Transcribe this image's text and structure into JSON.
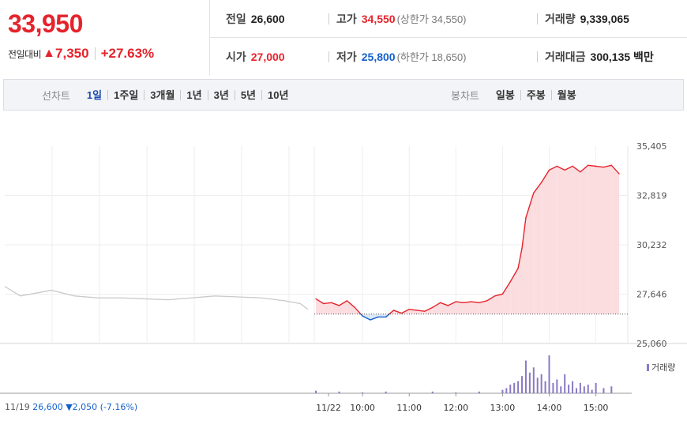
{
  "quote": {
    "price": "33,950",
    "change_label": "전일대비",
    "change_amount": "7,350",
    "change_rate": "+27.63%",
    "prev_close": {
      "label": "전일",
      "value": "26,600"
    },
    "high": {
      "label": "고가",
      "value": "34,550",
      "sub": "(상한가 34,550)"
    },
    "volume": {
      "label": "거래량",
      "value": "9,339,065"
    },
    "open": {
      "label": "시가",
      "value": "27,000"
    },
    "low": {
      "label": "저가",
      "value": "25,800",
      "sub": "(하한가 18,650)"
    },
    "amount": {
      "label": "거래대금",
      "value": "300,135 백만"
    }
  },
  "line_chart": {
    "title": "선차트",
    "periods": [
      "1일",
      "1주일",
      "3개월",
      "1년",
      "3년",
      "5년",
      "10년"
    ],
    "active": "1일"
  },
  "candle_chart": {
    "title": "봉차트",
    "periods": [
      "일봉",
      "주봉",
      "월봉"
    ]
  },
  "colors": {
    "up": "#e5232b",
    "down": "#1461cc",
    "prev_day": "#c9c9c9",
    "volume": "#8a79c4"
  },
  "footer": {
    "prev_date": "11/19",
    "prev_price": "26,600",
    "prev_change": "▼2,050 (-7.16%)"
  },
  "chart_data": {
    "type": "line",
    "y_ticks": [
      "35,405",
      "32,819",
      "30,232",
      "27,646",
      "25,060"
    ],
    "ylim": [
      25060,
      35405
    ],
    "base_price": 26600,
    "x_ticks": [
      "11/22",
      "10:00",
      "11:00",
      "12:00",
      "13:00",
      "14:00",
      "15:00"
    ],
    "volume_label": "거래량",
    "series": [
      {
        "x": [
          "11/19 09:00",
          "11/19 09:20",
          "11/19 09:40",
          "11/19 10:00",
          "11/19 10:30",
          "11/19 11:00",
          "11/19 11:30",
          "11/19 12:00",
          "11/19 12:30",
          "11/19 13:00",
          "11/19 13:30",
          "11/19 14:00",
          "11/19 14:30",
          "11/19 15:00",
          "11/19 15:20",
          "11/19 15:30"
        ],
        "values": [
          28050,
          27550,
          27700,
          27850,
          27550,
          27450,
          27450,
          27400,
          27350,
          27450,
          27550,
          27500,
          27450,
          27300,
          27150,
          26850
        ]
      },
      {
        "x": [
          "09:00",
          "09:10",
          "09:20",
          "09:30",
          "09:40",
          "09:50",
          "10:00",
          "10:10",
          "10:20",
          "10:30",
          "10:40",
          "10:50",
          "11:00",
          "11:10",
          "11:20",
          "11:30",
          "11:40",
          "11:50",
          "12:00",
          "12:10",
          "12:20",
          "12:30",
          "12:40",
          "12:50",
          "13:00",
          "13:10",
          "13:20",
          "13:25",
          "13:30",
          "13:40",
          "13:50",
          "14:00",
          "14:10",
          "14:20",
          "14:30",
          "14:40",
          "14:50",
          "15:00",
          "15:10",
          "15:20",
          "15:30"
        ],
        "values": [
          27400,
          27150,
          27200,
          27050,
          27300,
          26950,
          26500,
          26300,
          26450,
          26450,
          26800,
          26650,
          26850,
          26800,
          26750,
          26950,
          27200,
          27050,
          27250,
          27200,
          27250,
          27200,
          27300,
          27550,
          27650,
          28300,
          29000,
          30050,
          31650,
          32950,
          33500,
          34150,
          34350,
          34150,
          34350,
          34050,
          34400,
          34350,
          34300,
          34400,
          33950
        ]
      }
    ],
    "volume_bars": [
      {
        "x": "09:00",
        "v": 3
      },
      {
        "x": "09:30",
        "v": 2
      },
      {
        "x": "10:00",
        "v": 1
      },
      {
        "x": "10:30",
        "v": 2
      },
      {
        "x": "11:30",
        "v": 2
      },
      {
        "x": "12:00",
        "v": 1
      },
      {
        "x": "12:30",
        "v": 2
      },
      {
        "x": "13:00",
        "v": 4
      },
      {
        "x": "13:05",
        "v": 6
      },
      {
        "x": "13:10",
        "v": 10
      },
      {
        "x": "13:15",
        "v": 12
      },
      {
        "x": "13:20",
        "v": 14
      },
      {
        "x": "13:25",
        "v": 20
      },
      {
        "x": "13:30",
        "v": 38
      },
      {
        "x": "13:35",
        "v": 24
      },
      {
        "x": "13:40",
        "v": 30
      },
      {
        "x": "13:45",
        "v": 18
      },
      {
        "x": "13:50",
        "v": 22
      },
      {
        "x": "13:55",
        "v": 14
      },
      {
        "x": "14:00",
        "v": 44
      },
      {
        "x": "14:05",
        "v": 12
      },
      {
        "x": "14:10",
        "v": 16
      },
      {
        "x": "14:15",
        "v": 8
      },
      {
        "x": "14:20",
        "v": 22
      },
      {
        "x": "14:25",
        "v": 10
      },
      {
        "x": "14:30",
        "v": 14
      },
      {
        "x": "14:35",
        "v": 6
      },
      {
        "x": "14:40",
        "v": 12
      },
      {
        "x": "14:45",
        "v": 8
      },
      {
        "x": "14:50",
        "v": 10
      },
      {
        "x": "14:55",
        "v": 4
      },
      {
        "x": "15:00",
        "v": 12
      },
      {
        "x": "15:10",
        "v": 6
      },
      {
        "x": "15:20",
        "v": 8
      }
    ]
  }
}
